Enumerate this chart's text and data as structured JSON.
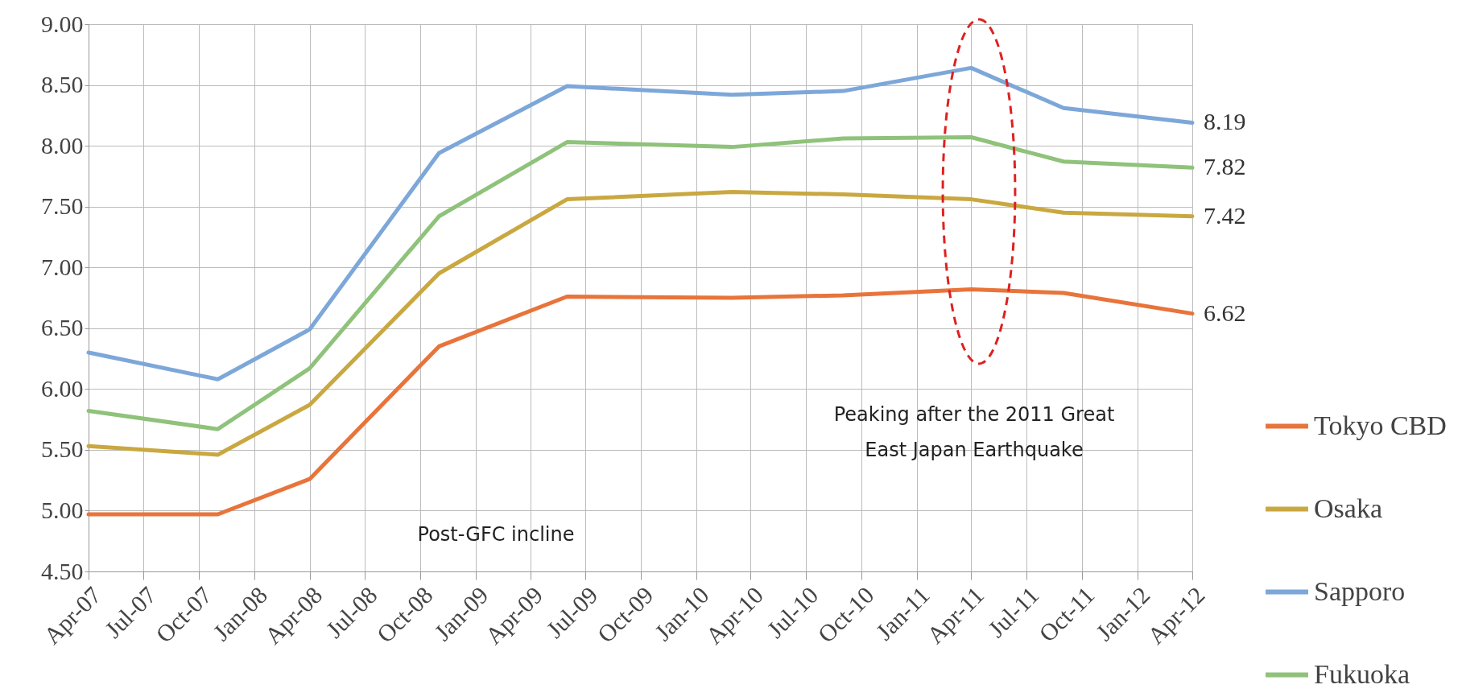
{
  "chart_data": {
    "type": "line",
    "x": [
      "2007-04",
      "2007-11",
      "2008-04",
      "2008-11",
      "2009-06",
      "2010-03",
      "2010-09",
      "2011-04",
      "2011-09",
      "2012-04"
    ],
    "series": [
      {
        "name": "Tokyo CBD",
        "color": "#e8743b",
        "values": [
          4.97,
          4.97,
          5.26,
          6.35,
          6.76,
          6.75,
          6.77,
          6.82,
          6.79,
          6.62
        ],
        "value_labels": [
          null,
          null,
          null,
          null,
          null,
          null,
          null,
          null,
          null,
          "6.62"
        ]
      },
      {
        "name": "Osaka",
        "color": "#c9a841",
        "values": [
          5.53,
          5.46,
          5.87,
          6.95,
          7.56,
          7.62,
          7.6,
          7.56,
          7.45,
          7.42
        ],
        "value_labels": [
          null,
          null,
          null,
          null,
          null,
          null,
          null,
          null,
          null,
          "7.42"
        ]
      },
      {
        "name": "Sapporo",
        "color": "#7da7d9",
        "values": [
          6.3,
          6.08,
          6.49,
          7.94,
          8.49,
          8.42,
          8.45,
          8.64,
          8.31,
          8.19
        ],
        "value_labels": [
          null,
          null,
          null,
          null,
          null,
          null,
          null,
          null,
          null,
          "8.19"
        ]
      },
      {
        "name": "Fukuoka",
        "color": "#8fc27a",
        "values": [
          5.82,
          5.67,
          6.17,
          7.42,
          8.03,
          7.99,
          8.06,
          8.07,
          7.87,
          7.82
        ],
        "value_labels": [
          null,
          null,
          null,
          null,
          null,
          null,
          null,
          null,
          null,
          "7.82"
        ]
      }
    ],
    "xlim": [
      "2007-04",
      "2012-04"
    ],
    "xticks": [
      {
        "value": "2007-04",
        "label": "Apr-07"
      },
      {
        "value": "2007-07",
        "label": "Jul-07"
      },
      {
        "value": "2007-10",
        "label": "Oct-07"
      },
      {
        "value": "2008-01",
        "label": "Jan-08"
      },
      {
        "value": "2008-04",
        "label": "Apr-08"
      },
      {
        "value": "2008-07",
        "label": "Jul-08"
      },
      {
        "value": "2008-10",
        "label": "Oct-08"
      },
      {
        "value": "2009-01",
        "label": "Jan-09"
      },
      {
        "value": "2009-04",
        "label": "Apr-09"
      },
      {
        "value": "2009-07",
        "label": "Jul-09"
      },
      {
        "value": "2009-10",
        "label": "Oct-09"
      },
      {
        "value": "2010-01",
        "label": "Jan-10"
      },
      {
        "value": "2010-04",
        "label": "Apr-10"
      },
      {
        "value": "2010-07",
        "label": "Jul-10"
      },
      {
        "value": "2010-10",
        "label": "Oct-10"
      },
      {
        "value": "2011-01",
        "label": "Jan-11"
      },
      {
        "value": "2011-04",
        "label": "Apr-11"
      },
      {
        "value": "2011-07",
        "label": "Jul-11"
      },
      {
        "value": "2011-10",
        "label": "Oct-11"
      },
      {
        "value": "2012-01",
        "label": "Jan-12"
      },
      {
        "value": "2012-04",
        "label": "Apr-12"
      }
    ],
    "ylim": [
      4.5,
      9
    ],
    "yticks": [
      {
        "value": 4.5,
        "label": "4.50"
      },
      {
        "value": 5,
        "label": "5.00"
      },
      {
        "value": 5.5,
        "label": "5.50"
      },
      {
        "value": 6,
        "label": "6.00"
      },
      {
        "value": 6.5,
        "label": "6.50"
      },
      {
        "value": 7,
        "label": "7.00"
      },
      {
        "value": 7.5,
        "label": "7.50"
      },
      {
        "value": 8,
        "label": "8.00"
      },
      {
        "value": 8.5,
        "label": "8.50"
      },
      {
        "value": 9,
        "label": "9.00"
      }
    ],
    "grid": true,
    "legend": "right",
    "marker": "none",
    "line_style": "solid",
    "annotations": [
      "Peaking after the 2011 Great East Japan Earthquake",
      "Post-GFC incline"
    ]
  }
}
